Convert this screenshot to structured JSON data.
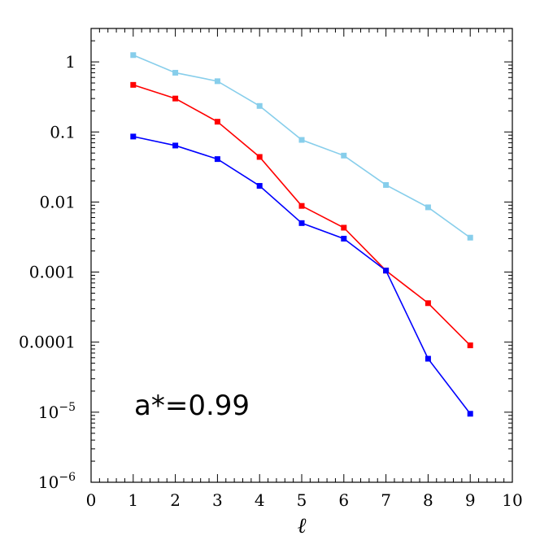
{
  "chart_data": {
    "type": "line",
    "xlabel": "ℓ",
    "ylabel": "",
    "xlim": [
      0,
      10
    ],
    "ylim": [
      1e-06,
      3
    ],
    "yscale": "log",
    "x_ticks": [
      0,
      1,
      2,
      3,
      4,
      5,
      6,
      7,
      8,
      9,
      10
    ],
    "x_tick_labels": [
      "0",
      "1",
      "2",
      "3",
      "4",
      "5",
      "6",
      "7",
      "8",
      "9",
      "10"
    ],
    "y_ticks": [
      {
        "value": 1,
        "base": "1",
        "exp": ""
      },
      {
        "value": 0.1,
        "base": "0.1",
        "exp": ""
      },
      {
        "value": 0.01,
        "base": "0.01",
        "exp": ""
      },
      {
        "value": 0.001,
        "base": "0.001",
        "exp": ""
      },
      {
        "value": 0.0001,
        "base": "0.0001",
        "exp": ""
      },
      {
        "value": 1e-05,
        "base": "10",
        "exp": "−5"
      },
      {
        "value": 1e-06,
        "base": "10",
        "exp": "−6"
      }
    ],
    "annotation": "a*=0.99",
    "grid": false,
    "x": [
      1,
      2,
      3,
      4,
      5,
      6,
      7,
      8,
      9
    ],
    "series": [
      {
        "color": "#87ceeb",
        "values": [
          1.25,
          0.7,
          0.53,
          0.235,
          0.077,
          0.046,
          0.0175,
          0.0084,
          0.0031
        ]
      },
      {
        "color": "#ff0000",
        "values": [
          0.47,
          0.3,
          0.14,
          0.044,
          0.0088,
          0.0043,
          0.00105,
          0.00036,
          9e-05
        ]
      },
      {
        "color": "#0000ff",
        "values": [
          0.086,
          0.064,
          0.041,
          0.017,
          0.005,
          0.003,
          0.00105,
          5.8e-05,
          9.5e-06
        ]
      }
    ]
  }
}
